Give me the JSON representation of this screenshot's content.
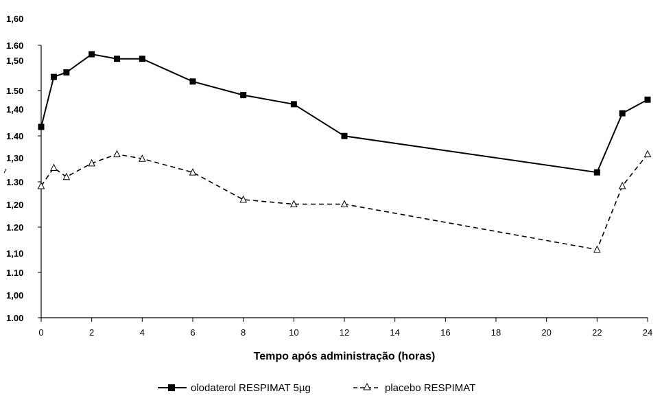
{
  "chart_data": {
    "type": "line",
    "xlabel": "Tempo após administração (horas)",
    "ylabel": "",
    "xlim": [
      0,
      24
    ],
    "x_ticks": [
      "0",
      "2",
      "4",
      "6",
      "8",
      "10",
      "12",
      "14",
      "16",
      "18",
      "20",
      "22",
      "24"
    ],
    "y_tick_labels": [
      "1,60",
      "1.60",
      "1,50",
      "1.50",
      "1,40",
      "1.40",
      "1,30",
      "1.30",
      "1,20",
      "1.20",
      "1,10",
      "1.10",
      "1,00",
      "1.00"
    ],
    "grid": false,
    "legend_position": "bottom",
    "series": [
      {
        "name": "olodaterol RESPIMAT 5µg",
        "style": "solid",
        "marker": "filled-square",
        "color": "#000000",
        "x": [
          0,
          0.5,
          1,
          2,
          3,
          4,
          6,
          8,
          10,
          12,
          22,
          23,
          24
        ],
        "y": [
          1.42,
          1.53,
          1.54,
          1.58,
          1.57,
          1.57,
          1.52,
          1.49,
          1.47,
          1.4,
          1.32,
          1.45,
          1.48
        ]
      },
      {
        "name": "placebo RESPIMAT",
        "style": "dashed",
        "marker": "open-triangle",
        "color": "#000000",
        "x": [
          0,
          0.5,
          1,
          2,
          3,
          4,
          6,
          8,
          10,
          12,
          22,
          23,
          24
        ],
        "y": [
          1.29,
          1.33,
          1.31,
          1.34,
          1.36,
          1.35,
          1.32,
          1.26,
          1.25,
          1.25,
          1.15,
          1.29,
          1.36
        ]
      }
    ]
  }
}
